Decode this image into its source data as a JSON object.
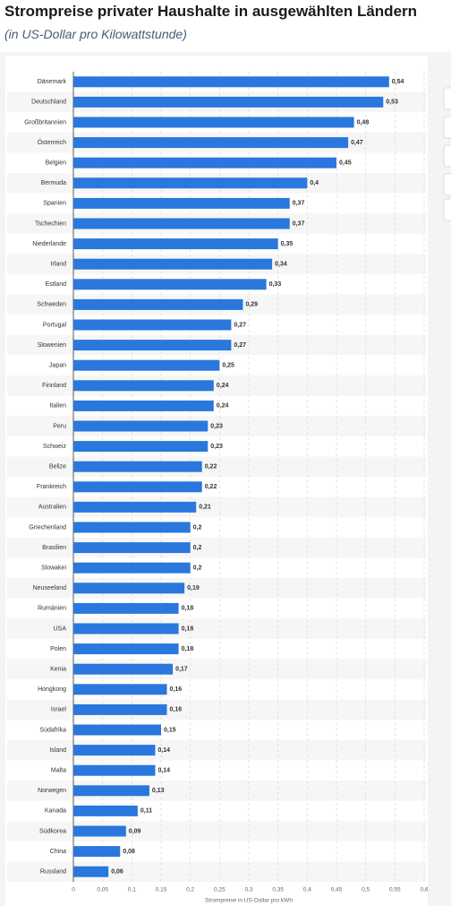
{
  "chart_data": {
    "type": "bar",
    "orientation": "horizontal",
    "title": "Strompreise privater Haushalte in ausgewählten Ländern",
    "subtitle": "(in US-Dollar pro Kilowattstunde)",
    "x_label": "Strompreise in US-Dollar pro kWh",
    "color": "#2a77dd",
    "grid": true,
    "categories": [
      "Dänemark",
      "Deutschland",
      "Großbritannien",
      "Österreich",
      "Belgien",
      "Bermuda",
      "Spanien",
      "Tschechien",
      "Niederlande",
      "Irland",
      "Estland",
      "Schweden",
      "Portugal",
      "Slowenien",
      "Japan",
      "Finnland",
      "Italien",
      "Peru",
      "Schweiz",
      "Belize",
      "Frankreich",
      "Australien",
      "Griechenland",
      "Brasilien",
      "Slowakei",
      "Neuseeland",
      "Rumänien",
      "USA",
      "Polen",
      "Kenia",
      "Hongkong",
      "Israel",
      "Südafrika",
      "Island",
      "Malta",
      "Norwegen",
      "Kanada",
      "Südkorea",
      "China",
      "Russland"
    ],
    "values": [
      0.54,
      0.53,
      0.48,
      0.47,
      0.45,
      0.4,
      0.37,
      0.37,
      0.35,
      0.34,
      0.33,
      0.29,
      0.27,
      0.27,
      0.25,
      0.24,
      0.24,
      0.23,
      0.23,
      0.22,
      0.22,
      0.21,
      0.2,
      0.2,
      0.2,
      0.19,
      0.18,
      0.18,
      0.18,
      0.17,
      0.16,
      0.16,
      0.15,
      0.14,
      0.14,
      0.13,
      0.11,
      0.09,
      0.08,
      0.06
    ],
    "value_labels": [
      "0,54",
      "0,53",
      "0,48",
      "0,47",
      "0,45",
      "0,4",
      "0,37",
      "0,37",
      "0,35",
      "0,34",
      "0,33",
      "0,29",
      "0,27",
      "0,27",
      "0,25",
      "0,24",
      "0,24",
      "0,23",
      "0,23",
      "0,22",
      "0,22",
      "0,21",
      "0,2",
      "0,2",
      "0,2",
      "0,19",
      "0,18",
      "0,18",
      "0,18",
      "0,17",
      "0,16",
      "0,16",
      "0,15",
      "0,14",
      "0,14",
      "0,13",
      "0,11",
      "0,09",
      "0,08",
      "0,06"
    ],
    "xlim": [
      0,
      0.6
    ],
    "xticks": [
      0,
      {
        "value": 0.05,
        "label": "0,05"
      },
      {
        "value": 0.1,
        "label": "0,1"
      },
      {
        "value": 0.15,
        "label": "0,15"
      },
      {
        "value": 0.2,
        "label": "0,2"
      },
      {
        "value": 0.25,
        "label": "0,25"
      },
      {
        "value": 0.3,
        "label": "0,3"
      },
      {
        "value": 0.35,
        "label": "0,35"
      },
      {
        "value": 0.4,
        "label": "0,4"
      },
      {
        "value": 0.45,
        "label": "0,45"
      },
      {
        "value": 0.5,
        "label": "0,5"
      },
      {
        "value": 0.55,
        "label": "0,55"
      },
      {
        "value": 0.6,
        "label": "0,6"
      }
    ]
  }
}
